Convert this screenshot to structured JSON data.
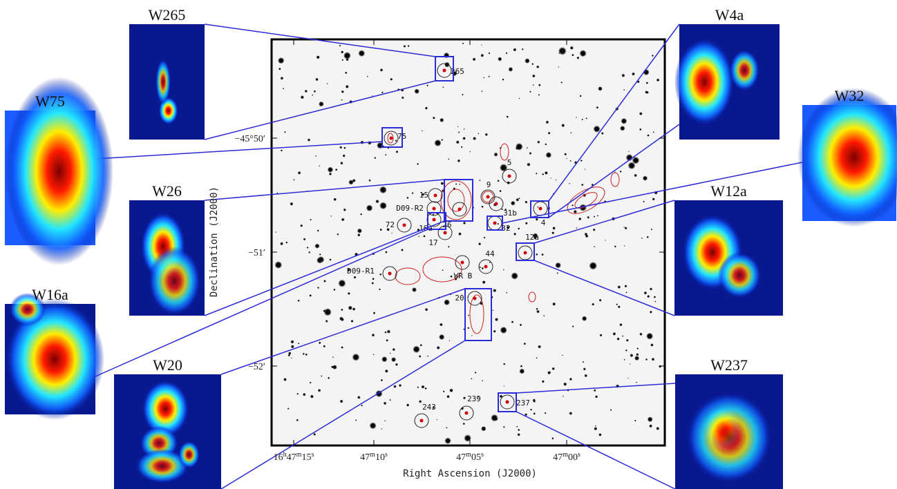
{
  "main_image": {
    "x_axis_label": "Right Ascension (J2000)",
    "y_axis_label": "Declination (J2000)",
    "dec_ticks": [
      "−45°50′",
      "−51′",
      "−52′"
    ],
    "ra_ticks": [
      [
        "16",
        "h",
        "47",
        "m",
        "15",
        "s"
      ],
      [
        "47",
        "m",
        "10",
        "s"
      ],
      [
        "47",
        "m",
        "05",
        "s"
      ],
      [
        "47",
        "m",
        "00",
        "s"
      ]
    ],
    "markers": [
      "265",
      "75",
      "5",
      "9",
      "15",
      "D09-R2",
      "72",
      "16a",
      "17",
      "26",
      "31b",
      "32",
      "4",
      "12a",
      "44",
      "D09-R1",
      "WR B",
      "20",
      "237",
      "239",
      "243"
    ]
  },
  "insets": [
    "W265",
    "W75",
    "W26",
    "W16a",
    "W20",
    "W4a",
    "W32",
    "W12a",
    "W237"
  ]
}
